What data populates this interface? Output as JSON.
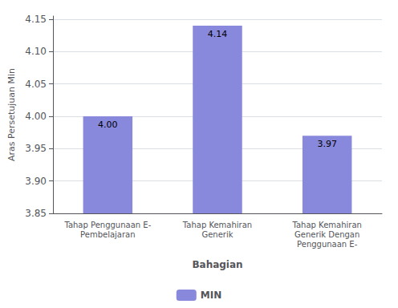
{
  "chart_data": {
    "type": "bar",
    "categories": [
      "Tahap Penggunaan E-\nPembelajaran",
      "Tahap Kemahiran\nGenerik",
      "Tahap Kemahiran\nGenerik Dengan\nPenggunaan E-"
    ],
    "series": [
      {
        "name": "MIN",
        "color": "#8888dd",
        "values": [
          4.0,
          4.14,
          3.97
        ],
        "value_labels": [
          "4.00",
          "4.14",
          "3.97"
        ]
      }
    ],
    "xlabel": "Bahagian",
    "ylabel": "Aras Persetujuan Min",
    "ylim": [
      3.85,
      4.155
    ],
    "yticks": [
      3.85,
      {
        "value": 3.9,
        "label": "3.90"
      },
      3.95,
      {
        "value": 4.0,
        "label": "4.00"
      },
      4.05,
      {
        "value": 4.1,
        "label": "4.10"
      },
      4.15
    ],
    "grid": true,
    "legend": "bottom",
    "data_labels": true
  }
}
